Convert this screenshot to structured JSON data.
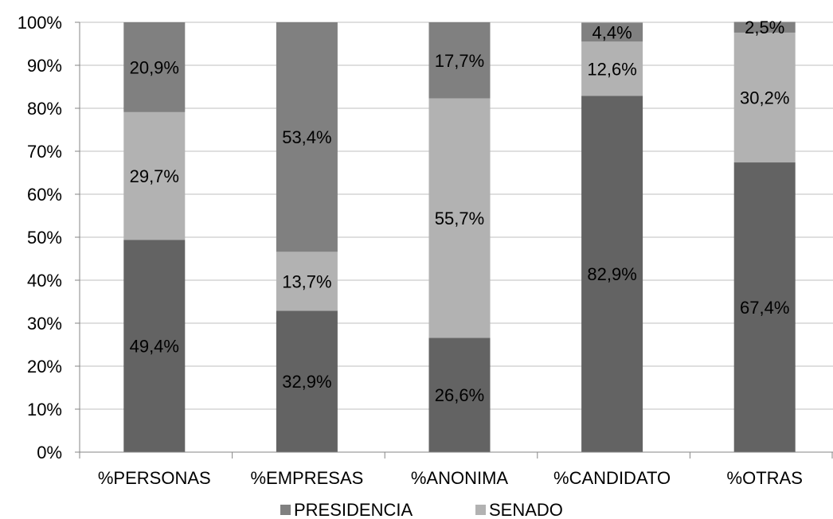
{
  "chart_data": {
    "type": "bar",
    "stacked": true,
    "percent_stacked": true,
    "categories": [
      "%PERSONAS",
      "%EMPRESAS",
      "%ANONIMA",
      "%CANDIDATO",
      "%OTRAS"
    ],
    "series": [
      {
        "values": [
          49.4,
          32.9,
          26.6,
          82.9,
          67.4
        ],
        "labels": [
          "49,4%",
          "32,9%",
          "26,6%",
          "82,9%",
          "67,4%"
        ],
        "color": "#636363"
      },
      {
        "name": "SENADO",
        "values": [
          29.7,
          13.7,
          55.7,
          12.6,
          30.2
        ],
        "labels": [
          "29,7%",
          "13,7%",
          "55,7%",
          "12,6%",
          "30,2%"
        ],
        "color": "#b2b2b2"
      },
      {
        "name": "PRESIDENCIA",
        "values": [
          20.9,
          53.4,
          17.7,
          4.4,
          2.5
        ],
        "labels": [
          "20,9%",
          "53,4%",
          "17,7%",
          "4,4%",
          "2,5%"
        ],
        "color": "#808080"
      }
    ],
    "ylim": [
      0,
      100
    ],
    "yticks": [
      "0%",
      "10%",
      "20%",
      "30%",
      "40%",
      "50%",
      "60%",
      "70%",
      "80%",
      "90%",
      "100%"
    ],
    "grid": true,
    "legend": {
      "position": "bottom",
      "entries": [
        {
          "label": "PRESIDENCIA",
          "color": "#808080"
        },
        {
          "label": "SENADO",
          "color": "#b2b2b2"
        }
      ]
    }
  }
}
